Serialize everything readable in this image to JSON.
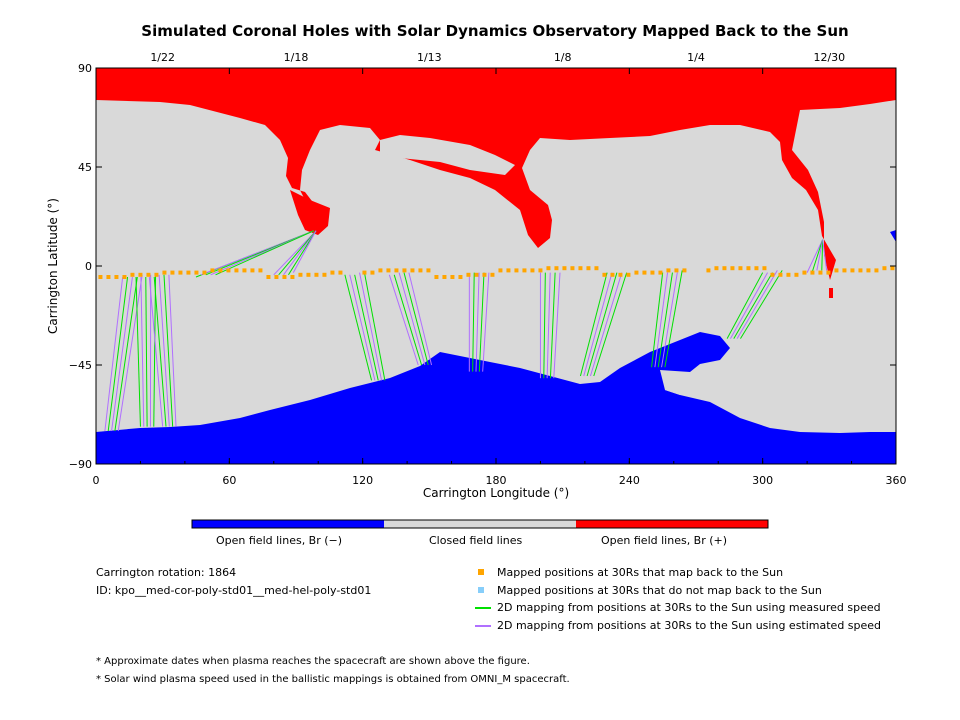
{
  "chart_data": {
    "type": "map",
    "title": "Simulated Coronal Holes with Solar Dynamics Observatory Mapped Back to the Sun",
    "xlabel": "Carrington Longitude (°)",
    "ylabel": "Carrington Latitude (°)",
    "xlim": [
      0,
      360
    ],
    "ylim": [
      -90,
      90
    ],
    "x_ticks": [
      "0",
      "60",
      "120",
      "180",
      "240",
      "300",
      "360"
    ],
    "y_ticks": [
      "90",
      "45",
      "0",
      "−45",
      "−90"
    ],
    "top_date_ticks": [
      {
        "label": "1/22",
        "lon": 30
      },
      {
        "label": "1/18",
        "lon": 90
      },
      {
        "label": "1/13",
        "lon": 150
      },
      {
        "label": "1/8",
        "lon": 210
      },
      {
        "label": "1/4",
        "lon": 270
      },
      {
        "label": "12/30",
        "lon": 330
      }
    ],
    "colorbar": [
      {
        "label": "Open field lines, Br (−)",
        "color": "#0000ff"
      },
      {
        "label": "Closed field lines",
        "color": "#d9d9d9"
      },
      {
        "label": "Open field lines, Br (+)",
        "color": "#ff0000"
      }
    ],
    "mapped_positions_lat": [
      -5,
      -5,
      -5,
      -5,
      -4,
      -4,
      -4,
      -4,
      -3,
      -3,
      -3,
      -3,
      -3,
      -3,
      -2,
      -2,
      -2,
      -2,
      -2,
      -2,
      -2
    ],
    "mappings": [
      {
        "from_lon": 12,
        "to_lon": 4,
        "to_lat": -75,
        "type": "estimated"
      },
      {
        "from_lon": 18,
        "to_lon": 20,
        "to_lat": -73,
        "type": "measured"
      },
      {
        "from_lon": 24,
        "to_lon": 30,
        "to_lat": -73,
        "type": "estimated"
      },
      {
        "from_lon": 45,
        "to_lon": 98,
        "to_lat": 16,
        "type": "measured"
      },
      {
        "from_lon": 80,
        "to_lon": 99,
        "to_lat": 16,
        "type": "estimated"
      },
      {
        "from_lon": 112,
        "to_lon": 124,
        "to_lat": -52,
        "type": "measured"
      },
      {
        "from_lon": 132,
        "to_lon": 145,
        "to_lat": -45,
        "type": "estimated"
      },
      {
        "from_lon": 168,
        "to_lon": 168,
        "to_lat": -48,
        "type": "estimated"
      },
      {
        "from_lon": 200,
        "to_lon": 200,
        "to_lat": -51,
        "type": "estimated"
      },
      {
        "from_lon": 230,
        "to_lon": 218,
        "to_lat": -50,
        "type": "measured"
      },
      {
        "from_lon": 255,
        "to_lon": 250,
        "to_lat": -46,
        "type": "measured"
      },
      {
        "from_lon": 300,
        "to_lon": 284,
        "to_lat": -33,
        "type": "measured"
      },
      {
        "from_lon": 320,
        "to_lon": 327,
        "to_lat": 12,
        "type": "estimated"
      }
    ]
  },
  "colorbar_labels": {
    "neg": "Open field lines, Br (−)",
    "closed": "Closed field lines",
    "pos": "Open field lines, Br (+)"
  },
  "info": {
    "rotation": "Carrington rotation: 1864",
    "id": "ID: kpo__med-cor-poly-std01__med-hel-poly-std01"
  },
  "legend": [
    {
      "label": "Mapped positions at 30Rs that map back to the Sun",
      "color": "#ffa500",
      "kind": "square"
    },
    {
      "label": "Mapped positions at 30Rs that do not map back to the Sun",
      "color": "#87cefa",
      "kind": "square"
    },
    {
      "label": "2D mapping from positions at 30Rs to the Sun using measured speed",
      "color": "#00e000",
      "kind": "line"
    },
    {
      "label": "2D mapping from positions at 30Rs to the Sun using estimated speed",
      "color": "#b070ff",
      "kind": "line"
    }
  ],
  "footnotes": [
    "* Approximate dates when plasma reaches the spacecraft are shown above the figure.",
    "* Solar wind plasma speed used in the ballistic mappings is obtained from OMNI_M spacecraft."
  ]
}
